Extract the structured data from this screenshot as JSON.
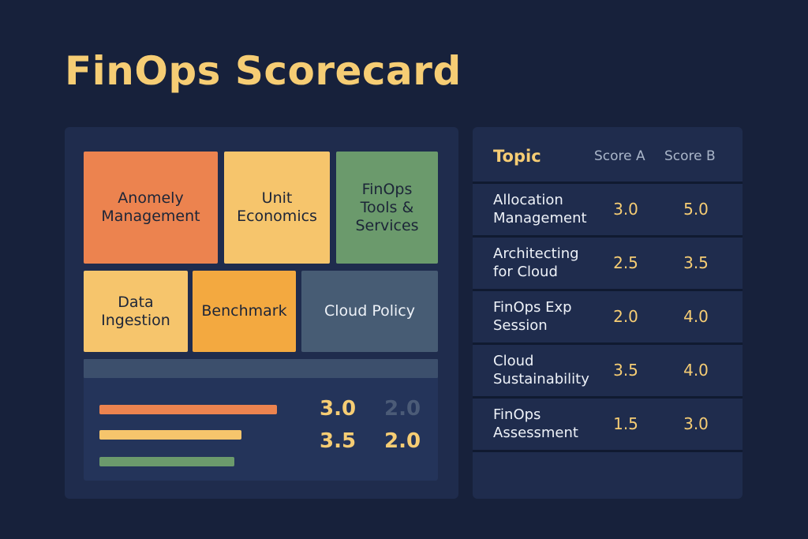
{
  "title": "FinOps Scorecard",
  "colors": {
    "background": "#17213b",
    "panel": "#1f2c4d",
    "accent_yellow": "#f6cd74",
    "orange": "#ec834f",
    "light_yellow": "#f6c56c",
    "green": "#6b9a6c",
    "amber": "#f3a940",
    "slate": "#475c74",
    "muted_value": "#4b5b77"
  },
  "tiles": [
    {
      "label": "Anomely\nManagement",
      "color": "#ec834f"
    },
    {
      "label": "Unit\nEconomics",
      "color": "#f6c56c"
    },
    {
      "label": "FinOps\nTools &\nServices",
      "color": "#6b9a6c"
    },
    {
      "label": "Data\nIngestion",
      "color": "#f6c56c"
    },
    {
      "label": "Benchmark",
      "color": "#f3a940"
    },
    {
      "label": "Cloud Policy",
      "color": "#475c74"
    }
  ],
  "summary": {
    "bars": [
      {
        "color": "#ec834f",
        "level": 0.5
      },
      {
        "color": "#f6c56c",
        "level": 0.4
      },
      {
        "color": "#6b9a6c",
        "level": 0.38
      }
    ],
    "values": [
      {
        "text": "3.0",
        "color": "#f6cd74"
      },
      {
        "text": "2.0",
        "color": "#4b5b77"
      },
      {
        "text": "3.5",
        "color": "#f6cd74"
      },
      {
        "text": "2.0",
        "color": "#f6cd74"
      }
    ]
  },
  "table": {
    "headers": {
      "topic": "Topic",
      "score_a": "Score A",
      "score_b": "Score B"
    },
    "rows": [
      {
        "topic": "Allocation\nManagement",
        "score_a": "3.0",
        "score_b": "5.0"
      },
      {
        "topic": "Architecting\nfor Cloud",
        "score_a": "2.5",
        "score_b": "3.5"
      },
      {
        "topic": "FinOps Exp\nSession",
        "score_a": "2.0",
        "score_b": "4.0"
      },
      {
        "topic": "Cloud\nSustainability",
        "score_a": "3.5",
        "score_b": "4.0"
      },
      {
        "topic": "FinOps\nAssessment",
        "score_a": "1.5",
        "score_b": "3.0"
      }
    ]
  }
}
